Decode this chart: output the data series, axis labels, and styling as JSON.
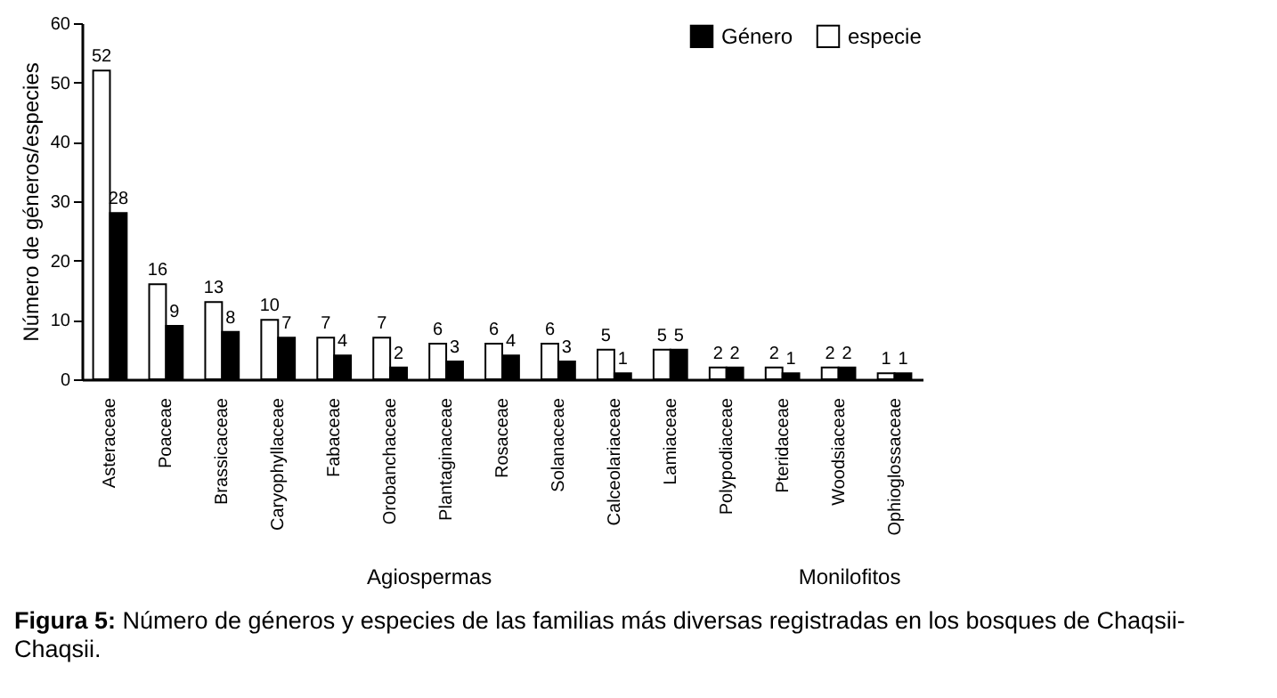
{
  "chart_data": {
    "type": "bar",
    "ylabel": "Número de géneros/especies",
    "categories": [
      "Asteraceae",
      "Poaceae",
      "Brassicaceae",
      "Caryophyllaceae",
      "Fabaceae",
      "Orobanchaceae",
      "Plantaginaceae",
      "Rosaceae",
      "Solanaceae",
      "Calceolariaceae",
      "Lamiaceae",
      "Polypodiaceae",
      "Pteridaceae",
      "Woodsiaceae",
      "Ophioglossaceae"
    ],
    "series": [
      {
        "name": "especie",
        "color": "#ffffff",
        "values": [
          52,
          16,
          13,
          10,
          7,
          7,
          6,
          6,
          6,
          5,
          5,
          2,
          2,
          2,
          1
        ]
      },
      {
        "name": "Género",
        "color": "#000000",
        "values": [
          28,
          9,
          8,
          7,
          4,
          2,
          3,
          4,
          3,
          1,
          5,
          2,
          1,
          2,
          1
        ]
      }
    ],
    "ylim": [
      0,
      60
    ],
    "yticks": [
      0,
      10,
      20,
      30,
      40,
      50,
      60
    ],
    "data_labels": true,
    "grid": false,
    "legend": "top right",
    "annotations": [
      "Agiospermas",
      "Monilofitos",
      "Figura 5: Número de géneros y especies de las familias más diversas registradas en los bosques de Chaqsii-Chaqsii."
    ]
  }
}
